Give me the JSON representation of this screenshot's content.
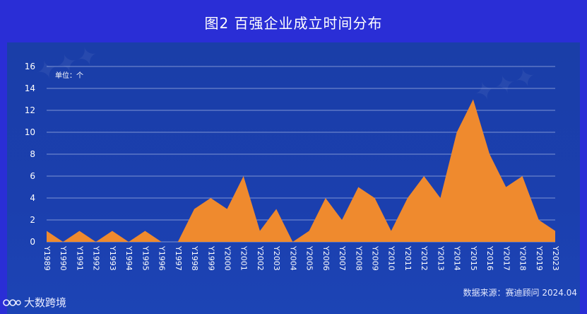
{
  "title": "图2 百强企业成立时间分布",
  "unit_label": "单位：个",
  "source": "数据来源：赛迪顾问    2024.04",
  "brand": "大数跨境",
  "colors": {
    "area": "#ef8a2e",
    "background": "#2a2ed6",
    "panel": "#1a3ea8",
    "grid": "#9fb0e0",
    "text": "#ffffff"
  },
  "chart_data": {
    "type": "area",
    "title": "",
    "xlabel": "",
    "ylabel": "",
    "ylim": [
      0,
      16
    ],
    "yticks": [
      0,
      2,
      4,
      6,
      8,
      10,
      12,
      14,
      16
    ],
    "grid": true,
    "categories": [
      "Y1989",
      "Y1990",
      "Y1991",
      "Y1992",
      "Y1993",
      "Y1994",
      "Y1995",
      "Y1996",
      "Y1997",
      "Y1998",
      "Y1999",
      "Y2000",
      "Y2001",
      "Y2002",
      "Y2003",
      "Y2004",
      "Y2005",
      "Y2006",
      "Y2007",
      "Y2008",
      "Y2009",
      "Y2010",
      "Y2011",
      "Y2012",
      "Y2013",
      "Y2014",
      "Y2015",
      "Y2016",
      "Y2017",
      "Y2018",
      "Y2019",
      "Y2023"
    ],
    "series": [
      {
        "values": [
          1,
          0,
          1,
          0,
          1,
          0,
          1,
          0,
          0,
          3,
          4,
          3,
          6,
          1,
          3,
          0,
          1,
          4,
          2,
          5,
          4,
          1,
          4,
          6,
          4,
          10,
          13,
          8,
          5,
          6,
          2,
          1
        ]
      }
    ]
  }
}
